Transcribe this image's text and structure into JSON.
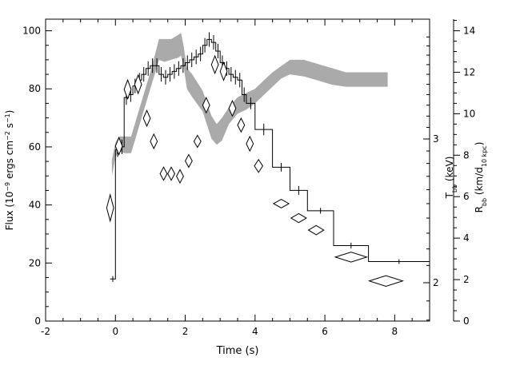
{
  "chart_data": {
    "type": "line",
    "xlabel": "Time (s)",
    "ylabel_left": "Flux (10⁻⁹ ergs cm⁻² s⁻¹)",
    "ylabel_right_inner": "T_bb (keV)",
    "ylabel_right_outer": "R_bb (km/d_10 kpc)",
    "xlim": [
      -2,
      9
    ],
    "ylim_left": [
      0,
      104
    ],
    "ylim_right_outer": [
      0,
      14.56
    ],
    "yscale_right_inner": "log",
    "x_ticks": [
      "-2",
      "0",
      "2",
      "4",
      "6",
      "8"
    ],
    "y_left_ticks": [
      "0",
      "20",
      "40",
      "60",
      "80",
      "100"
    ],
    "y_right_inner_ticks": [
      "2",
      "3"
    ],
    "y_right_outer_ticks": [
      "0",
      "2",
      "4",
      "6",
      "8",
      "10",
      "12",
      "14"
    ],
    "colors": {
      "flux": "#000000",
      "radius_band": "#aaaaaa",
      "temperature": "#000000"
    },
    "series": [
      {
        "role": "flux",
        "style": "step",
        "bins": [
          {
            "x0": -0.15,
            "x1": 0.0,
            "y": 14.5,
            "err": 1.0
          },
          {
            "x0": 0.0,
            "x1": 0.125,
            "y": 59,
            "err": 2.5
          },
          {
            "x0": 0.125,
            "x1": 0.25,
            "y": 60,
            "err": 2.5
          },
          {
            "x0": 0.25,
            "x1": 0.375,
            "y": 77,
            "err": 2.5
          },
          {
            "x0": 0.375,
            "x1": 0.5,
            "y": 78,
            "err": 2.5
          },
          {
            "x0": 0.5,
            "x1": 0.625,
            "y": 81,
            "err": 2.5
          },
          {
            "x0": 0.625,
            "x1": 0.75,
            "y": 83,
            "err": 2.5
          },
          {
            "x0": 0.75,
            "x1": 0.875,
            "y": 85,
            "err": 2.5
          },
          {
            "x0": 0.875,
            "x1": 1.0,
            "y": 87,
            "err": 2.5
          },
          {
            "x0": 1.0,
            "x1": 1.125,
            "y": 88,
            "err": 2.5
          },
          {
            "x0": 1.125,
            "x1": 1.25,
            "y": 88,
            "err": 2.5
          },
          {
            "x0": 1.25,
            "x1": 1.375,
            "y": 85,
            "err": 2.5
          },
          {
            "x0": 1.375,
            "x1": 1.5,
            "y": 84,
            "err": 2.5
          },
          {
            "x0": 1.5,
            "x1": 1.625,
            "y": 85,
            "err": 2.5
          },
          {
            "x0": 1.625,
            "x1": 1.75,
            "y": 86,
            "err": 2.5
          },
          {
            "x0": 1.75,
            "x1": 1.875,
            "y": 87,
            "err": 2.5
          },
          {
            "x0": 1.875,
            "x1": 2.0,
            "y": 88,
            "err": 2.5
          },
          {
            "x0": 2.0,
            "x1": 2.125,
            "y": 89,
            "err": 2.5
          },
          {
            "x0": 2.125,
            "x1": 2.25,
            "y": 90,
            "err": 2.5
          },
          {
            "x0": 2.25,
            "x1": 2.375,
            "y": 91,
            "err": 2.5
          },
          {
            "x0": 2.375,
            "x1": 2.5,
            "y": 92,
            "err": 2.5
          },
          {
            "x0": 2.5,
            "x1": 2.625,
            "y": 95,
            "err": 2.5
          },
          {
            "x0": 2.625,
            "x1": 2.75,
            "y": 97,
            "err": 2.5
          },
          {
            "x0": 2.75,
            "x1": 2.875,
            "y": 96,
            "err": 2.5
          },
          {
            "x0": 2.875,
            "x1": 3.0,
            "y": 93,
            "err": 2.5
          },
          {
            "x0": 3.0,
            "x1": 3.125,
            "y": 89,
            "err": 2.5
          },
          {
            "x0": 3.125,
            "x1": 3.25,
            "y": 87,
            "err": 2.5
          },
          {
            "x0": 3.25,
            "x1": 3.375,
            "y": 85,
            "err": 2.5
          },
          {
            "x0": 3.375,
            "x1": 3.5,
            "y": 84,
            "err": 2.5
          },
          {
            "x0": 3.5,
            "x1": 3.625,
            "y": 83,
            "err": 2.5
          },
          {
            "x0": 3.625,
            "x1": 3.75,
            "y": 78,
            "err": 2.5
          },
          {
            "x0": 3.75,
            "x1": 4.0,
            "y": 75,
            "err": 2.0
          },
          {
            "x0": 4.0,
            "x1": 4.5,
            "y": 66,
            "err": 2.0
          },
          {
            "x0": 4.5,
            "x1": 5.0,
            "y": 53,
            "err": 1.5
          },
          {
            "x0": 5.0,
            "x1": 5.5,
            "y": 45,
            "err": 1.5
          },
          {
            "x0": 5.5,
            "x1": 6.25,
            "y": 38,
            "err": 1.0
          },
          {
            "x0": 6.25,
            "x1": 7.25,
            "y": 26,
            "err": 1.0
          },
          {
            "x0": 7.25,
            "x1": 9.0,
            "y": 20.5,
            "err": 0.8
          }
        ]
      },
      {
        "role": "radius_band",
        "style": "band",
        "units": "R_bb (km/d_10 kpc)",
        "x": [
          -0.1,
          0.0,
          0.1,
          0.25,
          0.45,
          0.75,
          1.0,
          1.25,
          1.4,
          1.6,
          1.8,
          1.88,
          1.95,
          2.05,
          2.2,
          2.5,
          2.75,
          2.9,
          3.05,
          3.25,
          3.5,
          3.75,
          4.0,
          4.25,
          4.5,
          4.75,
          5.0,
          5.4,
          5.8,
          6.2,
          6.6,
          7.0,
          7.4,
          7.8
        ],
        "lower": [
          7.0,
          7.9,
          8.2,
          8.1,
          8.1,
          9.8,
          11.2,
          12.6,
          12.5,
          12.6,
          12.7,
          12.8,
          12.3,
          11.2,
          10.8,
          10.1,
          8.8,
          8.5,
          8.7,
          9.5,
          10.0,
          10.2,
          10.5,
          10.9,
          11.3,
          11.7,
          11.9,
          11.8,
          11.6,
          11.4,
          11.3,
          11.3,
          11.3,
          11.3
        ],
        "upper": [
          7.8,
          8.6,
          8.9,
          8.9,
          8.9,
          10.6,
          12.0,
          13.6,
          13.6,
          13.6,
          13.8,
          13.9,
          13.3,
          12.2,
          11.9,
          11.1,
          9.9,
          9.5,
          9.8,
          10.3,
          10.8,
          11.0,
          11.2,
          11.6,
          12.0,
          12.3,
          12.6,
          12.6,
          12.4,
          12.2,
          12.0,
          12.0,
          12.0,
          12.0
        ]
      },
      {
        "role": "temperature",
        "style": "diamonds",
        "units": "T_bb (keV)",
        "points": [
          {
            "x": -0.15,
            "y": 2.47,
            "dx": 0.1,
            "dy": 0.09
          },
          {
            "x": 0.1,
            "y": 2.94,
            "dx": 0.1,
            "dy": 0.07
          },
          {
            "x": 0.35,
            "y": 3.45,
            "dx": 0.1,
            "dy": 0.09
          },
          {
            "x": 0.65,
            "y": 3.5,
            "dx": 0.1,
            "dy": 0.09
          },
          {
            "x": 0.9,
            "y": 3.18,
            "dx": 0.1,
            "dy": 0.07
          },
          {
            "x": 1.1,
            "y": 2.98,
            "dx": 0.1,
            "dy": 0.06
          },
          {
            "x": 1.38,
            "y": 2.72,
            "dx": 0.1,
            "dy": 0.05
          },
          {
            "x": 1.6,
            "y": 2.72,
            "dx": 0.1,
            "dy": 0.05
          },
          {
            "x": 1.85,
            "y": 2.7,
            "dx": 0.1,
            "dy": 0.05
          },
          {
            "x": 2.1,
            "y": 2.82,
            "dx": 0.1,
            "dy": 0.05
          },
          {
            "x": 2.35,
            "y": 2.98,
            "dx": 0.1,
            "dy": 0.05
          },
          {
            "x": 2.6,
            "y": 3.3,
            "dx": 0.1,
            "dy": 0.07
          },
          {
            "x": 2.85,
            "y": 3.7,
            "dx": 0.1,
            "dy": 0.09
          },
          {
            "x": 3.1,
            "y": 3.63,
            "dx": 0.1,
            "dy": 0.09
          },
          {
            "x": 3.35,
            "y": 3.27,
            "dx": 0.1,
            "dy": 0.07
          },
          {
            "x": 3.6,
            "y": 3.12,
            "dx": 0.1,
            "dy": 0.06
          },
          {
            "x": 3.85,
            "y": 2.96,
            "dx": 0.1,
            "dy": 0.06
          },
          {
            "x": 4.1,
            "y": 2.78,
            "dx": 0.12,
            "dy": 0.05
          },
          {
            "x": 4.75,
            "y": 2.5,
            "dx": 0.22,
            "dy": 0.03
          },
          {
            "x": 5.25,
            "y": 2.4,
            "dx": 0.22,
            "dy": 0.03
          },
          {
            "x": 5.75,
            "y": 2.32,
            "dx": 0.22,
            "dy": 0.03
          },
          {
            "x": 6.75,
            "y": 2.15,
            "dx": 0.45,
            "dy": 0.03
          },
          {
            "x": 7.75,
            "y": 2.01,
            "dx": 0.48,
            "dy": 0.03
          }
        ]
      }
    ]
  }
}
